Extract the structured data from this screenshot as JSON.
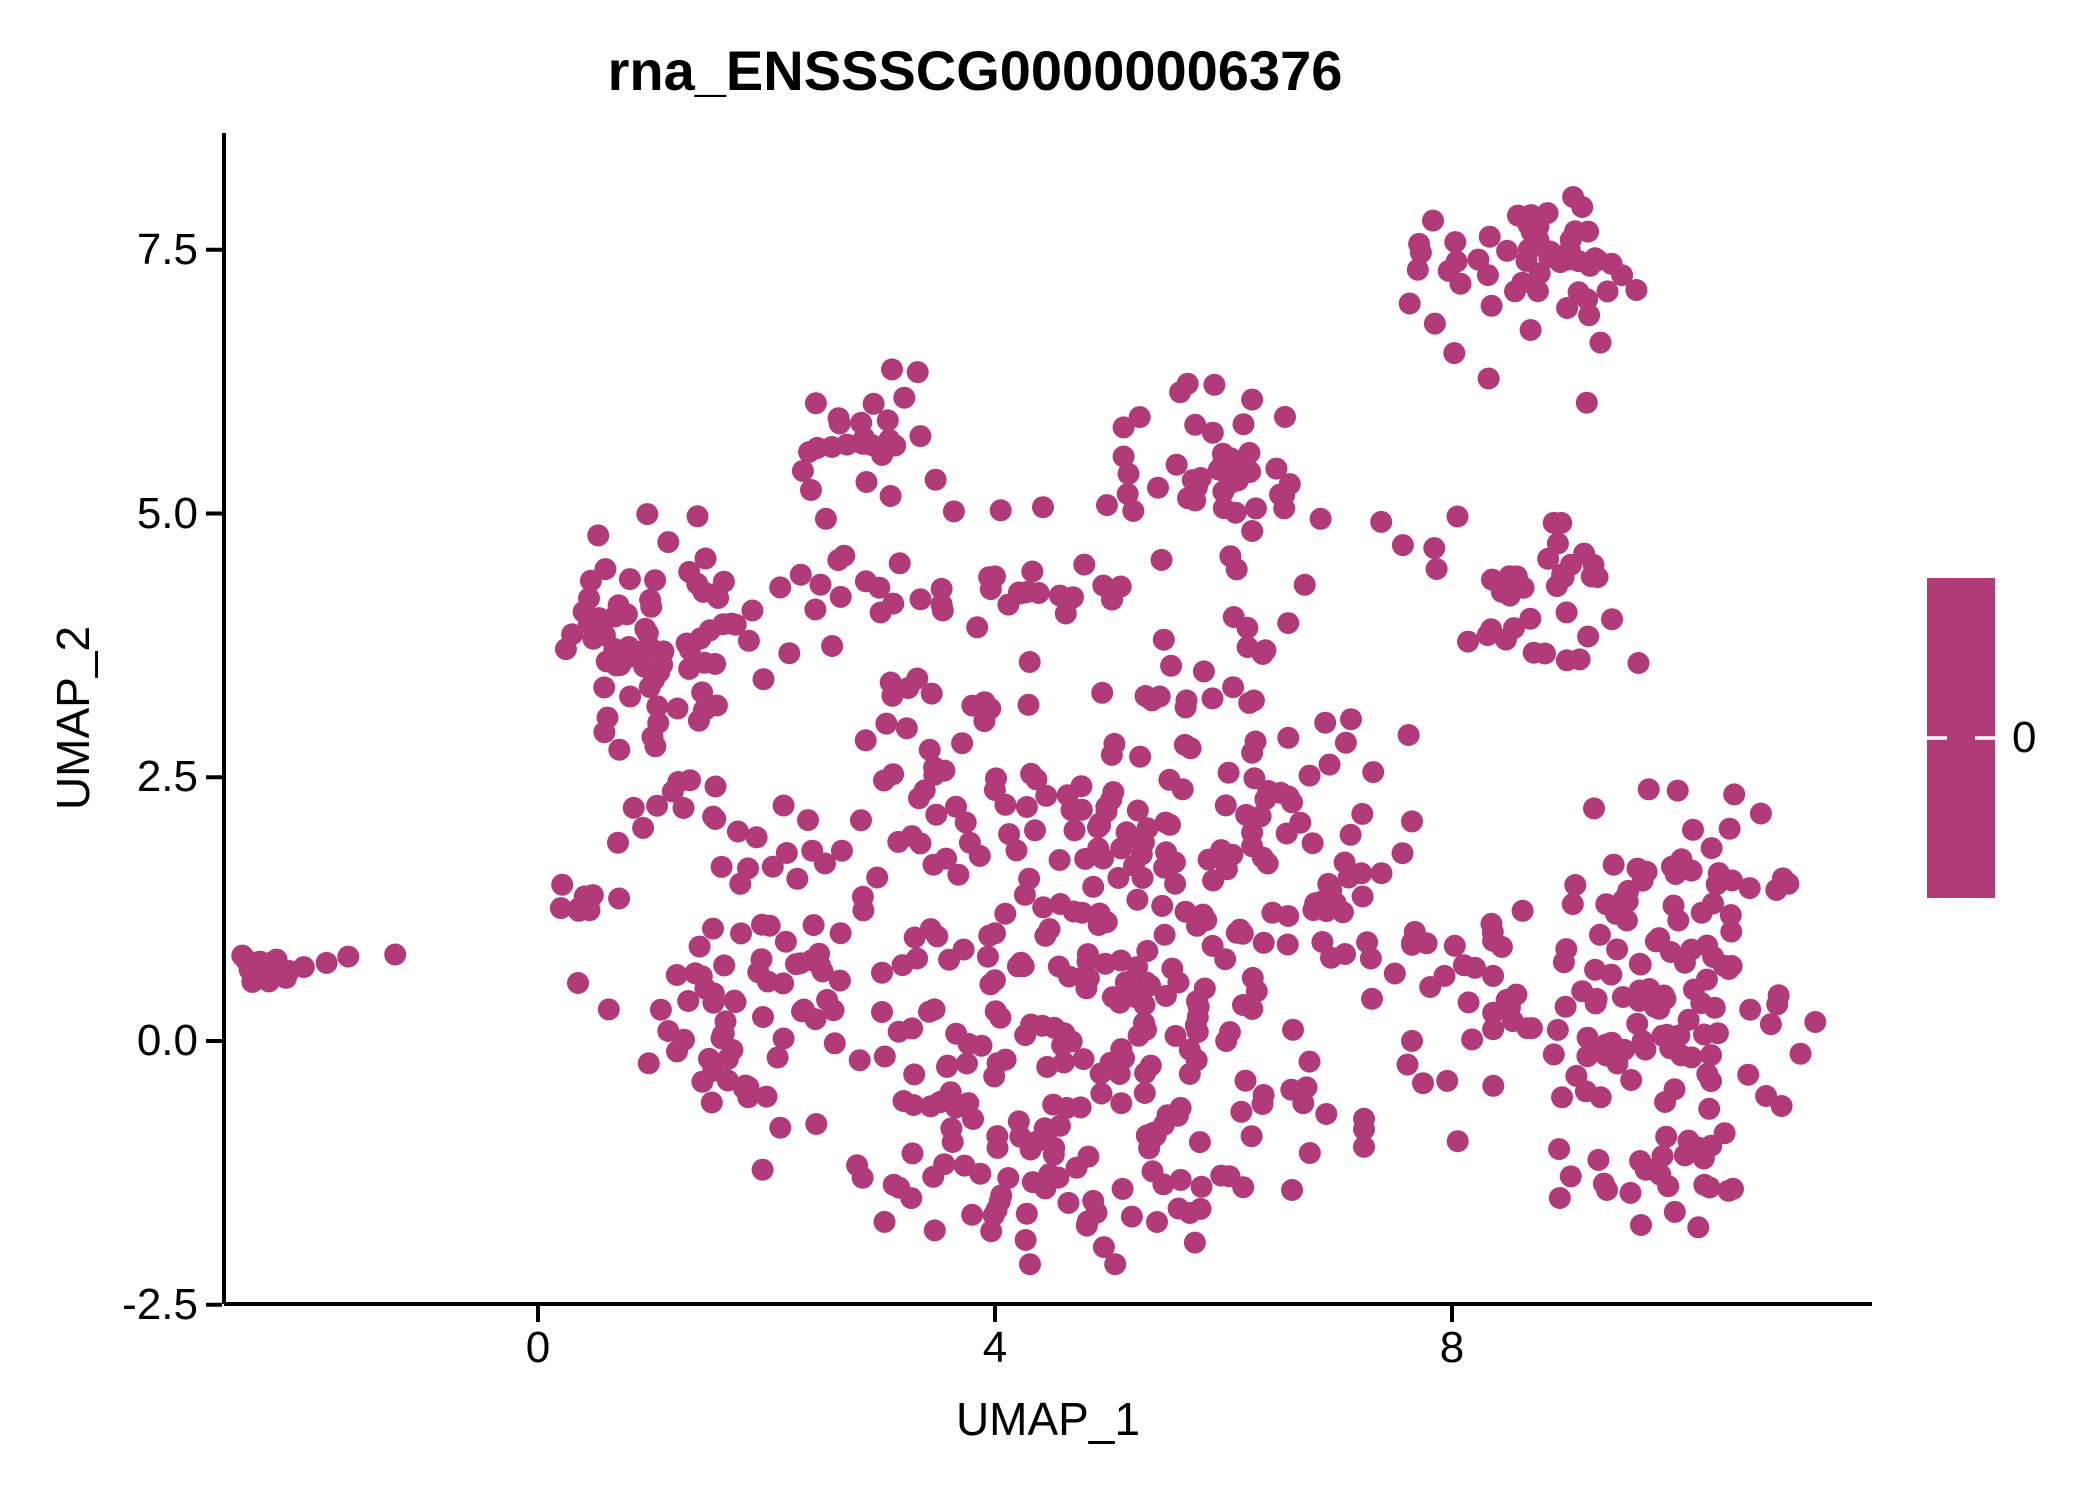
{
  "header": {
    "title": "rna_ENSSSCG00000006376"
  },
  "axes": {
    "x_label": "UMAP_1",
    "y_label": "UMAP_2",
    "x_tick_values": [
      0,
      4,
      8
    ],
    "x_tick_labels": [
      "0",
      "4",
      "8"
    ],
    "y_tick_values": [
      7.5,
      5.0,
      2.5,
      0.0,
      -2.5
    ],
    "y_tick_labels": [
      "7.5",
      "5.0",
      "2.5",
      "0.0",
      "-2.5"
    ]
  },
  "legend": {
    "tick_label": "0"
  },
  "colors": {
    "point": "#B13A78",
    "colorbar": "#B13A78",
    "axis": "#000000",
    "background": "#FFFFFF",
    "colorbar_tick": "#FFFFFF"
  },
  "chart_data": {
    "type": "scatter",
    "title": "rna_ENSSSCG00000006376",
    "xlabel": "UMAP_1",
    "ylabel": "UMAP_2",
    "xlim": [
      -2.83,
      11.7
    ],
    "ylim": [
      -2.5,
      8.64
    ],
    "x_ticks": [
      0,
      4,
      8
    ],
    "y_ticks": [
      7.5,
      5.0,
      2.5,
      0.0,
      -2.5
    ],
    "grid": false,
    "legend_position": "right",
    "legend": {
      "type": "colorbar",
      "tick_labels": [
        "0"
      ],
      "meaning": "feature expression, all cells = 0"
    },
    "point_color": "#B13A78",
    "point_radius_px": 11,
    "seed": 7,
    "cluster_fields": [
      "cx",
      "cy",
      "sx",
      "sy",
      "n"
    ],
    "clusters": [
      {
        "name": "far-left-knot",
        "cx": -2.42,
        "cy": 0.67,
        "sx": 0.11,
        "sy": 0.09,
        "n": 14
      },
      {
        "name": "top-right-a",
        "cx": 8.35,
        "cy": 7.35,
        "sx": 0.42,
        "sy": 0.3,
        "n": 26
      },
      {
        "name": "top-right-b",
        "cx": 9.05,
        "cy": 7.52,
        "sx": 0.33,
        "sy": 0.26,
        "n": 26
      },
      {
        "name": "upper-mid",
        "cx": 2.95,
        "cy": 5.75,
        "sx": 0.3,
        "sy": 0.28,
        "n": 26
      },
      {
        "name": "center-top",
        "cx": 6.05,
        "cy": 5.35,
        "sx": 0.42,
        "sy": 0.4,
        "n": 46
      },
      {
        "name": "right-mid",
        "cx": 8.75,
        "cy": 4.18,
        "sx": 0.42,
        "sy": 0.36,
        "n": 36
      },
      {
        "name": "left-blob",
        "cx": 1.05,
        "cy": 3.85,
        "sx": 0.42,
        "sy": 0.52,
        "n": 72
      },
      {
        "name": "left-blob-tail",
        "cx": 1.28,
        "cy": 2.42,
        "sx": 0.22,
        "sy": 0.28,
        "n": 10
      },
      {
        "name": "mid-band",
        "cx": 3.45,
        "cy": 4.25,
        "sx": 0.75,
        "sy": 0.14,
        "n": 20
      },
      {
        "name": "mid-band-knot",
        "cx": 4.55,
        "cy": 4.3,
        "sx": 0.25,
        "sy": 0.12,
        "n": 10
      },
      {
        "name": "central-upper",
        "cx": 4.6,
        "cy": 2.2,
        "sx": 0.75,
        "sy": 0.5,
        "n": 55
      },
      {
        "name": "central-mid",
        "cx": 4.9,
        "cy": 0.95,
        "sx": 1.25,
        "sy": 0.7,
        "n": 140
      },
      {
        "name": "central-low",
        "cx": 4.7,
        "cy": -0.5,
        "sx": 1.15,
        "sy": 0.55,
        "n": 105
      },
      {
        "name": "bottom-arc",
        "cx": 4.55,
        "cy": -1.5,
        "sx": 0.7,
        "sy": 0.28,
        "n": 32
      },
      {
        "name": "left-column",
        "cx": 2.1,
        "cy": 1.45,
        "sx": 0.32,
        "sy": 0.75,
        "n": 28
      },
      {
        "name": "left-lower",
        "cx": 1.62,
        "cy": 0.1,
        "sx": 0.4,
        "sy": 0.6,
        "n": 38
      },
      {
        "name": "left-knot-2",
        "cx": 0.45,
        "cy": 1.33,
        "sx": 0.17,
        "sy": 0.1,
        "n": 9
      },
      {
        "name": "right-bridge",
        "cx": 6.9,
        "cy": 2.0,
        "sx": 0.4,
        "sy": 0.55,
        "n": 28
      },
      {
        "name": "top-bridge",
        "cx": 5.9,
        "cy": 3.4,
        "sx": 0.45,
        "sy": 0.42,
        "n": 22
      },
      {
        "name": "center-upper-sparse",
        "cx": 3.3,
        "cy": 3.1,
        "sx": 0.5,
        "sy": 0.45,
        "n": 22
      },
      {
        "name": "right-upper-lobe",
        "cx": 10.0,
        "cy": 1.55,
        "sx": 0.5,
        "sy": 0.38,
        "n": 38
      },
      {
        "name": "right-main",
        "cx": 9.9,
        "cy": 0.1,
        "sx": 0.7,
        "sy": 0.6,
        "n": 85
      },
      {
        "name": "right-left-edge",
        "cx": 8.55,
        "cy": 0.55,
        "sx": 0.28,
        "sy": 0.45,
        "n": 16
      },
      {
        "name": "right-tail",
        "cx": 9.7,
        "cy": -1.15,
        "sx": 0.42,
        "sy": 0.28,
        "n": 18
      },
      {
        "name": "far-right-bridge",
        "cx": 7.85,
        "cy": 0.7,
        "sx": 0.25,
        "sy": 0.5,
        "n": 8
      }
    ],
    "outlier_points": [
      [
        -2.05,
        0.7
      ],
      [
        -1.85,
        0.74
      ],
      [
        -1.66,
        0.8
      ],
      [
        -1.25,
        0.82
      ],
      [
        7.85,
        6.8
      ],
      [
        8.02,
        6.52
      ],
      [
        8.32,
        6.28
      ],
      [
        9.2,
        6.88
      ],
      [
        9.3,
        6.62
      ],
      [
        9.18,
        6.05
      ],
      [
        4.05,
        5.03
      ],
      [
        4.42,
        5.06
      ],
      [
        4.98,
        5.08
      ],
      [
        2.52,
        4.95
      ],
      [
        2.68,
        4.6
      ],
      [
        3.48,
        5.32
      ],
      [
        3.64,
        5.02
      ],
      [
        7.38,
        4.92
      ],
      [
        7.57,
        4.7
      ],
      [
        6.85,
        4.95
      ],
      [
        5.62,
        6.15
      ],
      [
        5.92,
        6.22
      ],
      [
        6.25,
        6.08
      ],
      [
        0.35,
        0.55
      ],
      [
        0.62,
        0.3
      ],
      [
        0.92,
        2.02
      ],
      [
        0.7,
        1.88
      ],
      [
        8.05,
        -0.95
      ],
      [
        9.95,
        -1.62
      ],
      [
        10.42,
        -1.42
      ],
      [
        11.05,
        -0.12
      ],
      [
        11.18,
        0.18
      ],
      [
        7.62,
        2.9
      ],
      [
        2.3,
        4.42
      ],
      [
        2.12,
        4.3
      ]
    ]
  }
}
